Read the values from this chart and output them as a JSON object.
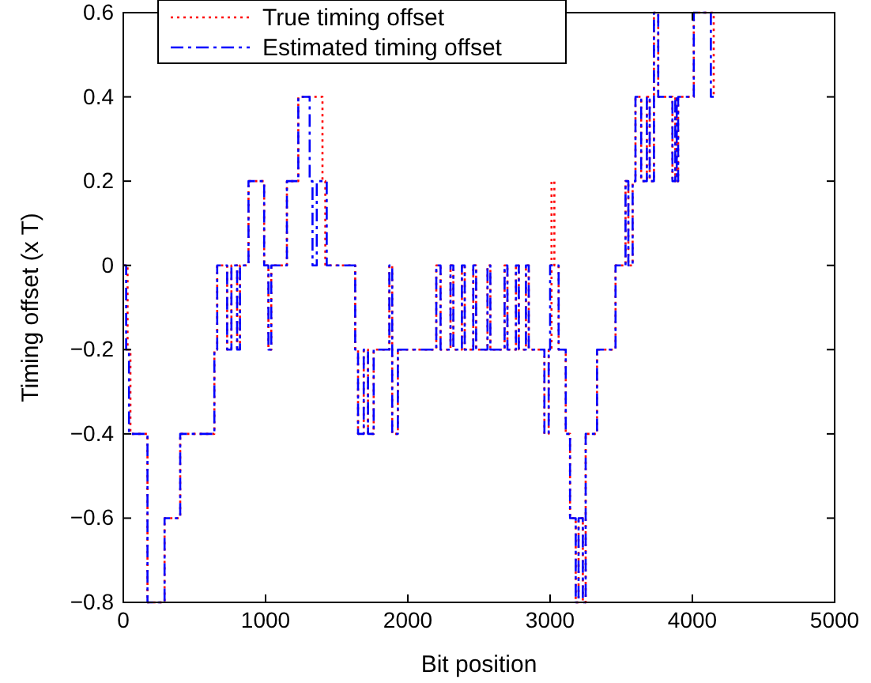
{
  "chart_data": {
    "type": "step",
    "xlabel": "Bit position",
    "ylabel": "Timing offset (x T)",
    "xlim": [
      0,
      5000
    ],
    "xticks": [
      0,
      1000,
      2000,
      3000,
      4000,
      5000
    ],
    "ylim": [
      -0.8,
      0.6
    ],
    "yticks": [
      -0.8,
      -0.6,
      -0.4,
      -0.2,
      0,
      0.2,
      0.4,
      0.6
    ],
    "legend": "top left",
    "grid": false,
    "series": [
      {
        "name": "True timing offset",
        "color": "#ff0000",
        "line_style": "dotted",
        "x": [
          0,
          30,
          50,
          170,
          290,
          400,
          640,
          660,
          730,
          760,
          800,
          820,
          880,
          990,
          1020,
          1040,
          1150,
          1230,
          1400,
          1420,
          1440,
          1630,
          1650,
          1690,
          1720,
          1760,
          1870,
          1890,
          1930,
          2200,
          2230,
          2300,
          2320,
          2380,
          2400,
          2460,
          2480,
          2560,
          2580,
          2680,
          2700,
          2760,
          2780,
          2830,
          2850,
          2960,
          2990,
          3010,
          3030,
          3060,
          3110,
          3140,
          3180,
          3200,
          3230,
          3250,
          3330,
          3460,
          3530,
          3550,
          3580,
          3600,
          3640,
          3680,
          3700,
          3730,
          3760,
          3860,
          3880,
          3890,
          3900,
          4010,
          4150
        ],
        "values": [
          0,
          -0.2,
          -0.4,
          -0.8,
          -0.6,
          -0.4,
          -0.2,
          0,
          -0.2,
          0,
          -0.2,
          0,
          0.2,
          0,
          -0.2,
          0,
          0.2,
          0.4,
          0.2,
          0,
          0,
          -0.2,
          -0.4,
          -0.2,
          -0.4,
          -0.2,
          0,
          -0.4,
          -0.2,
          0,
          -0.2,
          0,
          -0.2,
          0,
          -0.2,
          0,
          -0.2,
          0,
          -0.2,
          0,
          -0.2,
          0,
          -0.2,
          0,
          -0.2,
          -0.4,
          -0.2,
          0.2,
          0,
          -0.2,
          -0.4,
          -0.6,
          -0.8,
          -0.6,
          -0.8,
          -0.4,
          -0.2,
          0,
          0.2,
          0,
          0.2,
          0.4,
          0.2,
          0.4,
          0.2,
          0.6,
          0.4,
          0.2,
          0.4,
          0.2,
          0.4,
          0.6,
          0.4
        ]
      },
      {
        "name": "Estimated timing offset",
        "color": "#0000ff",
        "line_style": "dashed",
        "x": [
          0,
          20,
          40,
          170,
          290,
          400,
          640,
          660,
          730,
          760,
          800,
          820,
          880,
          990,
          1020,
          1040,
          1150,
          1230,
          1310,
          1330,
          1360,
          1430,
          1630,
          1650,
          1690,
          1720,
          1760,
          1870,
          1890,
          1930,
          2200,
          2230,
          2300,
          2320,
          2380,
          2400,
          2460,
          2480,
          2560,
          2580,
          2680,
          2700,
          2760,
          2780,
          2830,
          2850,
          2960,
          2990,
          3000,
          3060,
          3110,
          3140,
          3180,
          3200,
          3230,
          3250,
          3330,
          3460,
          3530,
          3550,
          3580,
          3600,
          3640,
          3680,
          3700,
          3730,
          3760,
          3860,
          3880,
          3890,
          3900,
          4010,
          4130,
          4150
        ],
        "values": [
          0,
          -0.2,
          -0.4,
          -0.8,
          -0.6,
          -0.4,
          -0.2,
          0,
          -0.2,
          0,
          -0.2,
          0,
          0.2,
          0,
          -0.2,
          0,
          0.2,
          0.4,
          0.2,
          0,
          0.2,
          0,
          -0.2,
          -0.4,
          -0.2,
          -0.4,
          -0.2,
          0,
          -0.4,
          -0.2,
          0,
          -0.2,
          0,
          -0.2,
          0,
          -0.2,
          0,
          -0.2,
          0,
          -0.2,
          0,
          -0.2,
          0,
          -0.2,
          0,
          -0.2,
          -0.4,
          -0.2,
          0,
          -0.2,
          -0.4,
          -0.6,
          -0.8,
          -0.6,
          -0.8,
          -0.4,
          -0.2,
          0,
          0.2,
          0,
          0.2,
          0.4,
          0.2,
          0.4,
          0.2,
          0.6,
          0.4,
          0.2,
          0.4,
          0.2,
          0.4,
          0.6,
          0.4,
          0.4
        ]
      }
    ]
  }
}
